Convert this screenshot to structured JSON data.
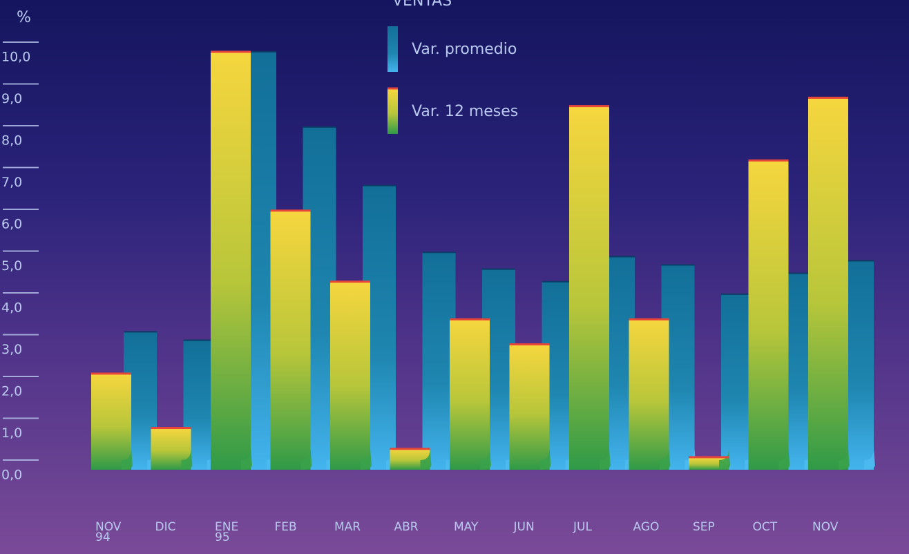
{
  "chart_data": {
    "type": "bar",
    "title": "VENTAS",
    "y_label": "%",
    "categories": [
      "NOV 94",
      "DIC",
      "ENE 95",
      "FEB",
      "MAR",
      "ABR",
      "MAY",
      "JUN",
      "JUL",
      "AGO",
      "SEP",
      "OCT",
      "NOV"
    ],
    "series": [
      {
        "name": "Var. 12 meses",
        "color": "#e9cf3a",
        "values": [
          2.3,
          1.0,
          10.0,
          6.2,
          4.5,
          0.5,
          3.6,
          3.0,
          8.7,
          3.6,
          0.3,
          7.4,
          8.9
        ]
      },
      {
        "name": "Var. promedio",
        "color": "#1e86b0",
        "values": [
          3.3,
          3.1,
          10.0,
          8.2,
          6.8,
          5.2,
          4.8,
          4.5,
          5.1,
          4.9,
          4.2,
          4.7,
          5.0
        ]
      }
    ],
    "ylim": [
      0,
      10
    ],
    "yticks": [
      {
        "value": 0,
        "label": "0,0"
      },
      {
        "value": 1,
        "label": "1,0"
      },
      {
        "value": 2,
        "label": "2,0"
      },
      {
        "value": 3,
        "label": "3,0"
      },
      {
        "value": 4,
        "label": "4,0"
      },
      {
        "value": 5,
        "label": "5,0"
      },
      {
        "value": 6,
        "label": "6,0"
      },
      {
        "value": 7,
        "label": "7,0"
      },
      {
        "value": 8,
        "label": "8,0"
      },
      {
        "value": 9,
        "label": "9,0"
      },
      {
        "value": 10,
        "label": "10,0"
      }
    ]
  }
}
